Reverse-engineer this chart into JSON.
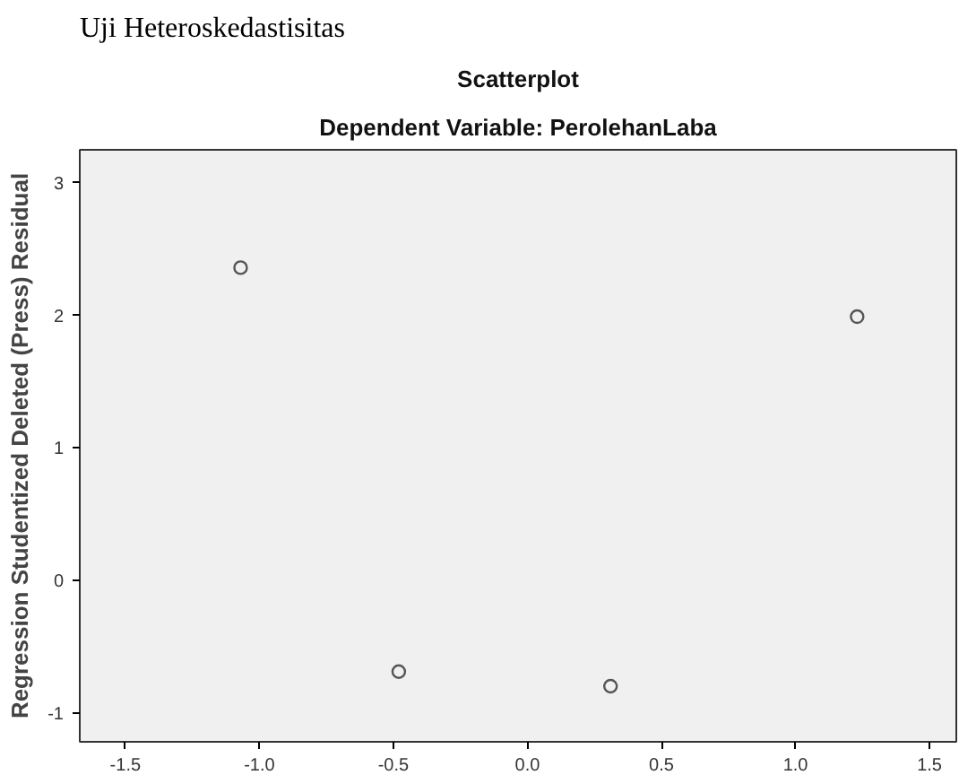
{
  "chart_data": {
    "type": "scatter",
    "title": "Scatterplot",
    "subtitle": "Dependent Variable: PerolehanLaba",
    "ylabel": "Regression Studentized Deleted (Press) Residual",
    "annotations": [
      "Uji Heteroskedastisitas"
    ],
    "x": [
      -1.07,
      -0.48,
      0.31,
      1.23
    ],
    "series": [
      {
        "color": "#555555",
        "values": [
          2.36,
          -0.69,
          -0.8,
          1.99
        ]
      }
    ],
    "xlim": [
      -1.67,
      1.6
    ],
    "ylim": [
      -1.22,
      3.25
    ],
    "xticks": [
      {
        "value": -1.5,
        "label": "-1.5"
      },
      {
        "value": -1.0,
        "label": "-1.0"
      },
      {
        "value": -0.5,
        "label": "-0.5"
      },
      {
        "value": 0,
        "label": "0.0"
      },
      {
        "value": 0.5,
        "label": "0.5"
      },
      {
        "value": 1.0,
        "label": "1.0"
      },
      {
        "value": 1.5,
        "label": "1.5"
      }
    ],
    "yticks": [
      -1,
      0,
      1,
      2,
      3
    ],
    "grid": false,
    "marker": "circle"
  }
}
